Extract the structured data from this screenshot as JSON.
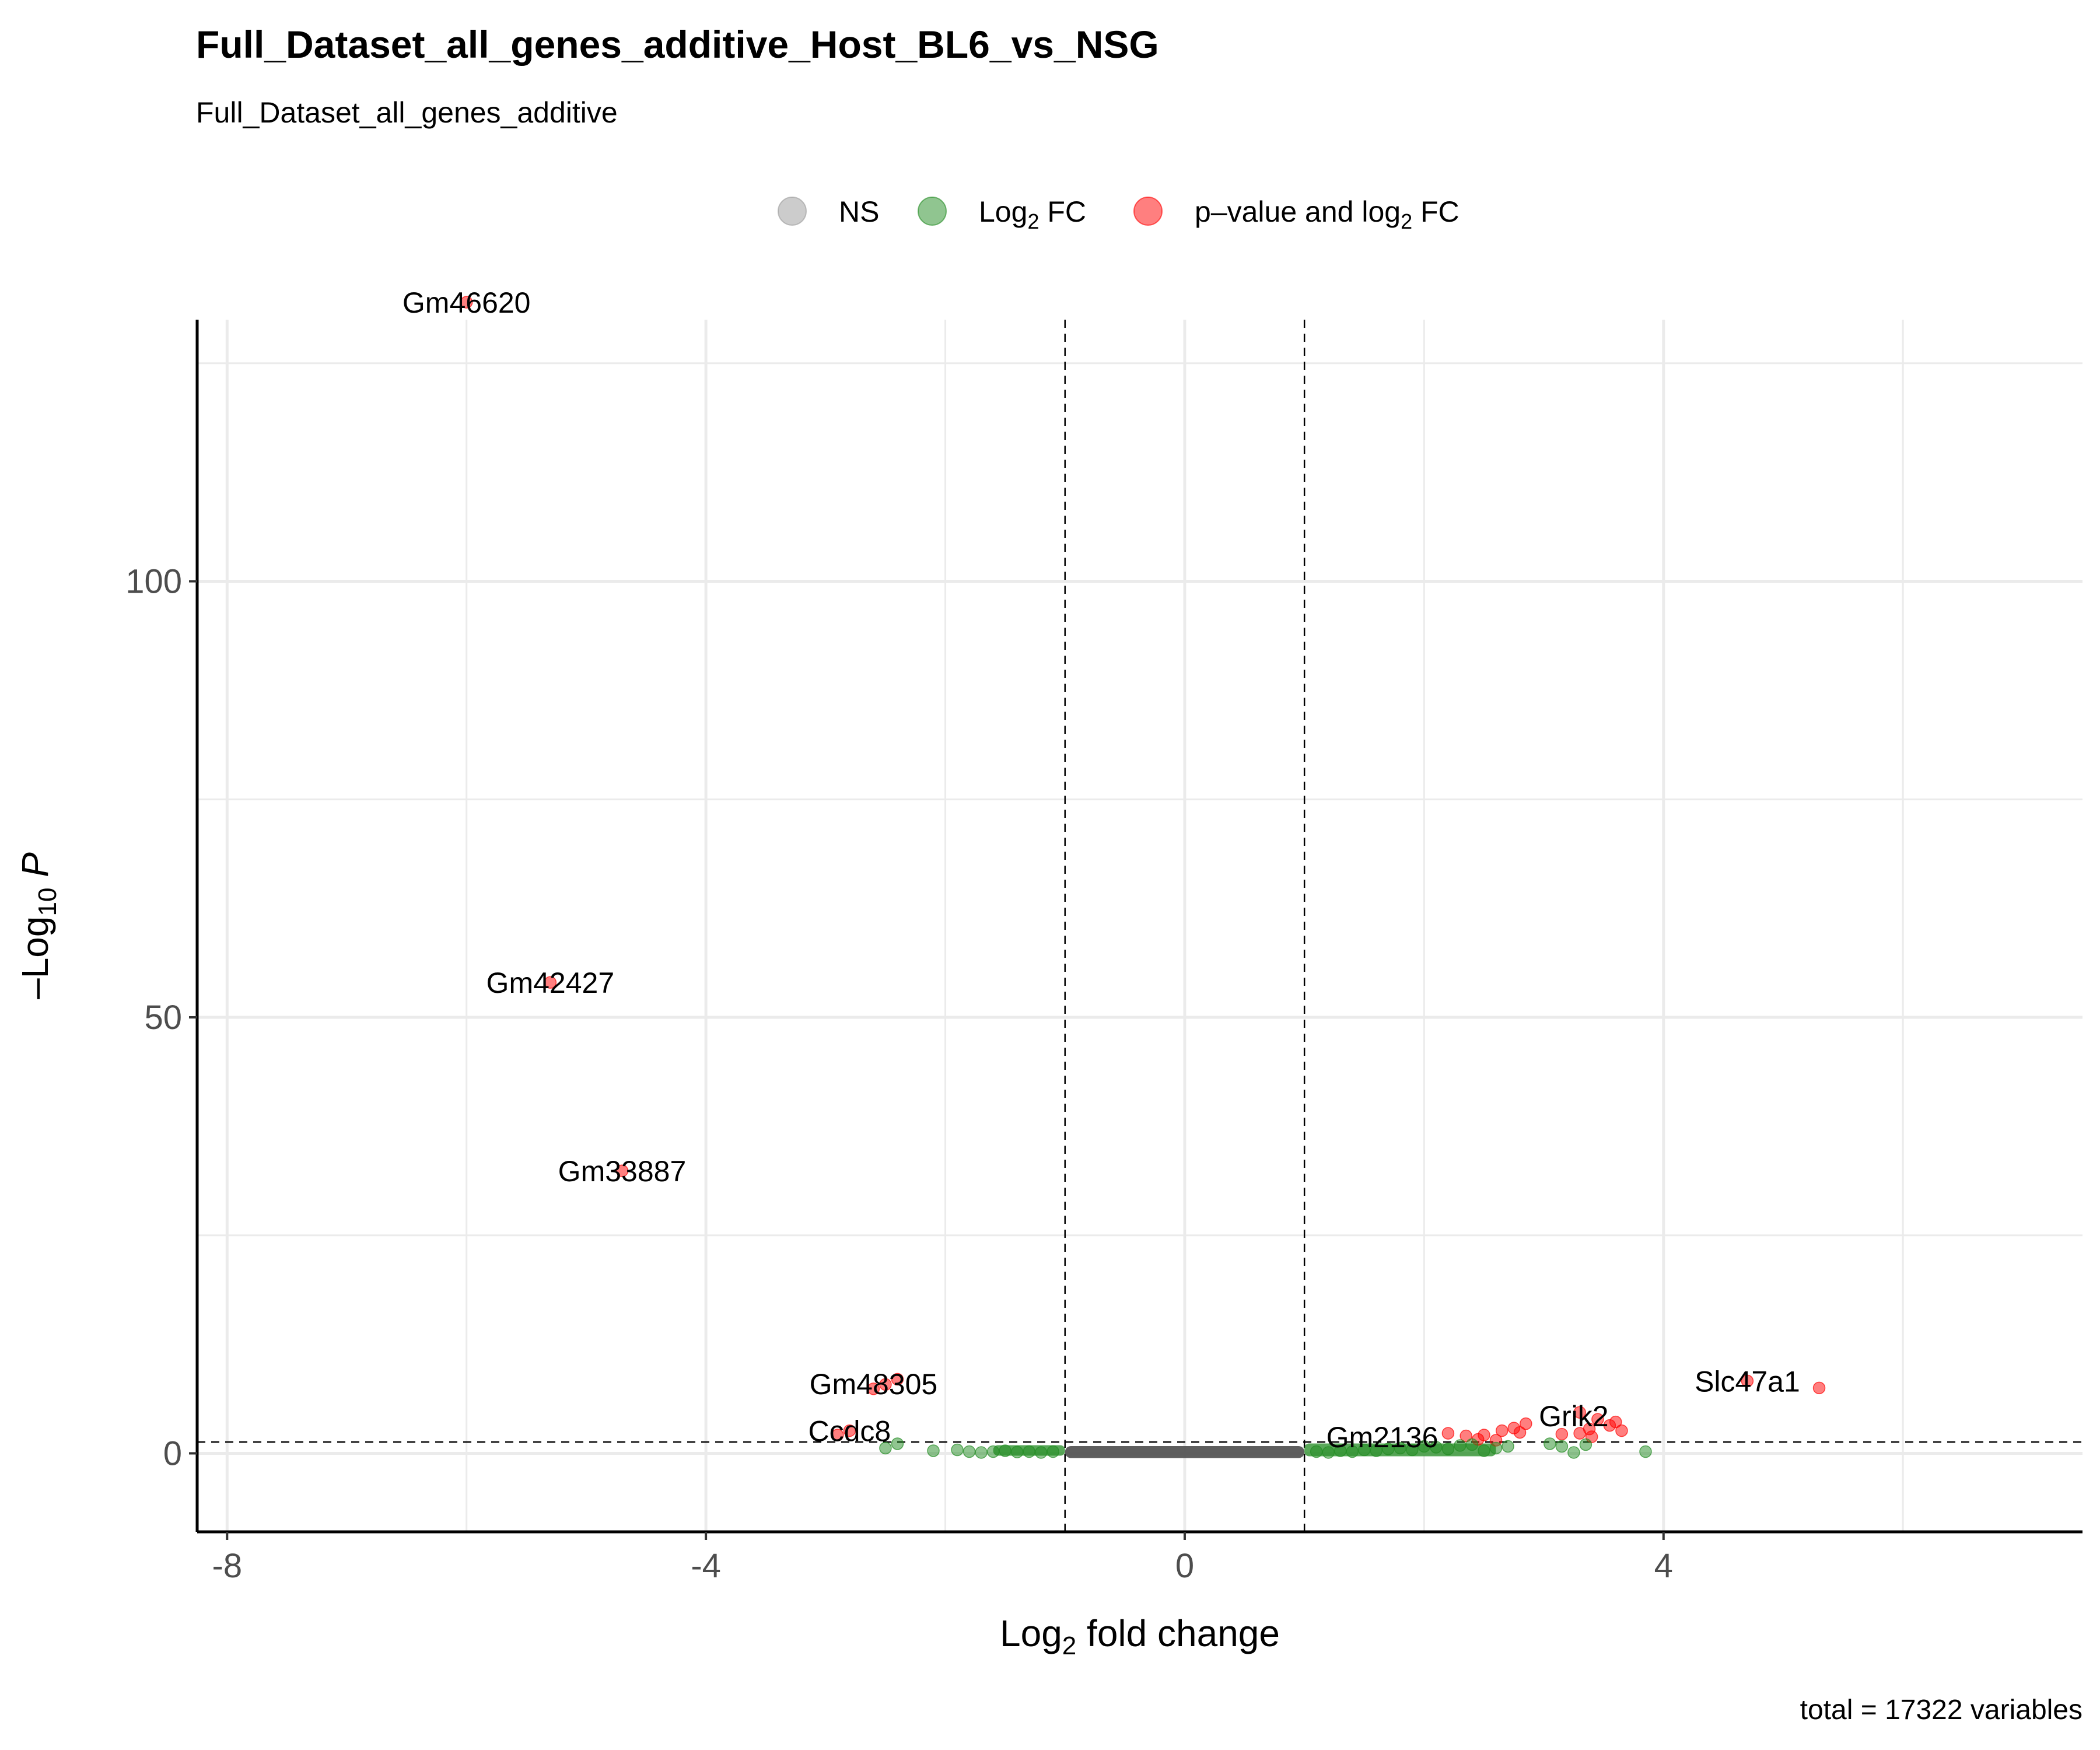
{
  "chart_data": {
    "type": "scatter",
    "title": "Full_Dataset_all_genes_additive_Host_BL6_vs_NSG",
    "subtitle": "Full_Dataset_all_genes_additive",
    "caption": "total = 17322 variables",
    "xlabel": {
      "base": "Log",
      "sub": "2",
      "rest": " fold change"
    },
    "ylabel": {
      "prefix": "–Log",
      "sub": "10",
      "italic": "P"
    },
    "xlim": [
      -8.25,
      7.5
    ],
    "ylim": [
      -9,
      130
    ],
    "x_ticks": [
      -8,
      -4,
      0,
      4
    ],
    "y_ticks": [
      0,
      50,
      100
    ],
    "grid": true,
    "fc_cutoff": [
      -1,
      1
    ],
    "p_cutoff_neglog10": 1.3,
    "legend": {
      "position": "top",
      "items": [
        {
          "key": "ns",
          "label_parts": [
            "NS"
          ],
          "color": "#999999"
        },
        {
          "key": "fc",
          "label_parts": [
            "Log",
            "2",
            " FC"
          ],
          "color": "#228B22"
        },
        {
          "key": "both",
          "label_parts": [
            "p–value and log",
            "2",
            " FC"
          ],
          "color": "#FF0000"
        }
      ]
    },
    "series": [
      {
        "key": "both",
        "color": "#FF0000",
        "points": [
          [
            -6.0,
            132.0
          ],
          [
            -5.3,
            54.0
          ],
          [
            -4.7,
            32.4
          ],
          [
            -2.4,
            8.5
          ],
          [
            -2.5,
            7.9
          ],
          [
            -2.6,
            7.4
          ],
          [
            -2.8,
            2.6
          ],
          [
            -2.9,
            2.1
          ],
          [
            4.7,
            8.3
          ],
          [
            5.3,
            7.5
          ],
          [
            3.3,
            4.7
          ],
          [
            3.45,
            3.9
          ],
          [
            3.6,
            3.6
          ],
          [
            3.55,
            3.2
          ],
          [
            3.38,
            2.8
          ],
          [
            3.65,
            2.6
          ],
          [
            3.3,
            2.3
          ],
          [
            3.4,
            1.9
          ],
          [
            3.15,
            2.2
          ],
          [
            2.85,
            3.4
          ],
          [
            2.75,
            2.9
          ],
          [
            2.8,
            2.4
          ],
          [
            2.65,
            2.6
          ],
          [
            2.5,
            2.1
          ],
          [
            2.35,
            2.0
          ],
          [
            2.2,
            2.3
          ],
          [
            2.45,
            1.6
          ],
          [
            2.6,
            1.5
          ]
        ]
      },
      {
        "key": "fc",
        "color": "#228B22",
        "points": [
          [
            -2.4,
            1.1
          ],
          [
            -2.5,
            0.6
          ],
          [
            -2.1,
            0.3
          ],
          [
            -1.9,
            0.4
          ],
          [
            -1.8,
            0.2
          ],
          [
            -1.7,
            0.1
          ],
          [
            -1.6,
            0.2
          ],
          [
            -1.5,
            0.3
          ],
          [
            -1.4,
            0.15
          ],
          [
            -1.3,
            0.2
          ],
          [
            -1.2,
            0.1
          ],
          [
            -1.1,
            0.2
          ],
          [
            1.1,
            0.2
          ],
          [
            1.2,
            0.1
          ],
          [
            1.3,
            0.3
          ],
          [
            1.4,
            0.2
          ],
          [
            1.5,
            0.4
          ],
          [
            1.6,
            0.3
          ],
          [
            1.7,
            0.5
          ],
          [
            1.8,
            0.6
          ],
          [
            1.9,
            0.4
          ],
          [
            2.0,
            0.8
          ],
          [
            2.1,
            0.7
          ],
          [
            2.2,
            0.5
          ],
          [
            2.3,
            0.9
          ],
          [
            2.4,
            1.0
          ],
          [
            2.5,
            0.3
          ],
          [
            2.6,
            0.6
          ],
          [
            2.7,
            0.8
          ],
          [
            3.05,
            1.1
          ],
          [
            3.15,
            0.8
          ],
          [
            3.25,
            0.1
          ],
          [
            3.85,
            0.2
          ],
          [
            3.35,
            1.0
          ]
        ]
      },
      {
        "key": "ns",
        "color": "#555555",
        "x_range": [
          -1.0,
          1.0
        ],
        "y_range": [
          0,
          0.3
        ]
      }
    ],
    "annotations": [
      {
        "text": "Gm46620",
        "x": -6.0,
        "y": 132.0
      },
      {
        "text": "Gm42427",
        "x": -5.3,
        "y": 54.0
      },
      {
        "text": "Gm33887",
        "x": -4.7,
        "y": 32.4
      },
      {
        "text": "Gm48305",
        "x": -2.6,
        "y": 8.0
      },
      {
        "text": "Ccdc8",
        "x": -2.8,
        "y": 2.6
      },
      {
        "text": "Gm2136",
        "x": 1.65,
        "y": 1.9
      },
      {
        "text": "Grik2",
        "x": 3.25,
        "y": 4.3
      },
      {
        "text": "Slc47a1",
        "x": 4.7,
        "y": 8.3
      }
    ]
  }
}
